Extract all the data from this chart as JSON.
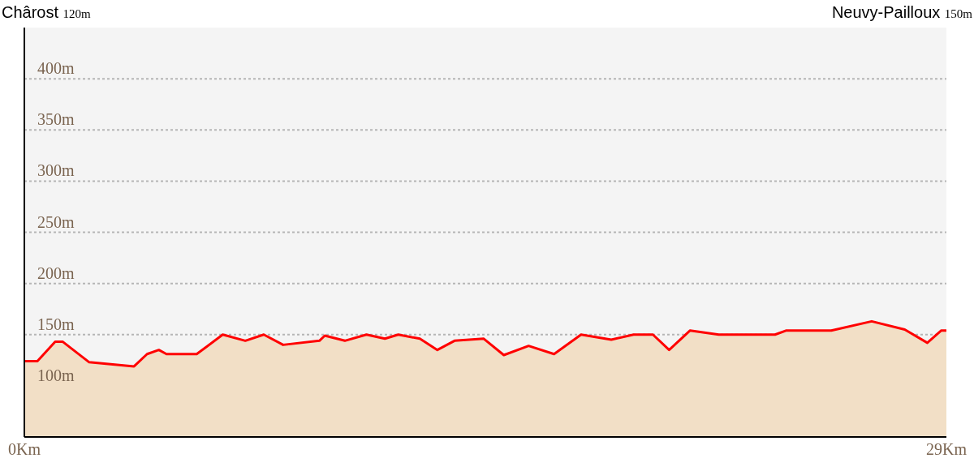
{
  "chart_data": {
    "type": "area",
    "annotations": [
      "Chârost 120m",
      "Neuvy-Pailloux 150m"
    ],
    "x": [
      0,
      0.41,
      0.97,
      1.21,
      2.04,
      3.45,
      3.86,
      4.23,
      4.47,
      5.42,
      6.24,
      6.95,
      7.53,
      8.14,
      9.28,
      9.45,
      10.08,
      10.76,
      11.34,
      11.76,
      12.44,
      12.99,
      13.53,
      14.45,
      15.08,
      15.86,
      16.66,
      17.51,
      18.46,
      19.16,
      19.77,
      20.28,
      20.94,
      21.84,
      23.61,
      23.97,
      25.38,
      26.65,
      27.69,
      28.4,
      28.84,
      29
    ],
    "series": [
      {
        "color": "#ff0000",
        "values": [
          124,
          124,
          143,
          143,
          123,
          119,
          131,
          135,
          131,
          131,
          150,
          144,
          150,
          140,
          144,
          149,
          144,
          150,
          146,
          150,
          146,
          135,
          144,
          146,
          130,
          139,
          131,
          150,
          145,
          150,
          150,
          135,
          154,
          150,
          150,
          154,
          154,
          163,
          155,
          142,
          154,
          154
        ]
      }
    ],
    "xlim": [
      0,
      29
    ],
    "xticks": [
      {
        "value": 0,
        "label": "0Km"
      },
      {
        "value": 29,
        "label": "29Km"
      }
    ],
    "ylim": [
      50,
      450
    ],
    "yticks": [
      {
        "value": 100,
        "label": "100m"
      },
      {
        "value": 150,
        "label": "150m"
      },
      {
        "value": 200,
        "label": "200m"
      },
      {
        "value": 250,
        "label": "250m"
      },
      {
        "value": 300,
        "label": "300m"
      },
      {
        "value": 350,
        "label": "350m"
      },
      {
        "value": 400,
        "label": "400m"
      }
    ],
    "grid": "y",
    "marker": "none",
    "line_style": "solid"
  }
}
